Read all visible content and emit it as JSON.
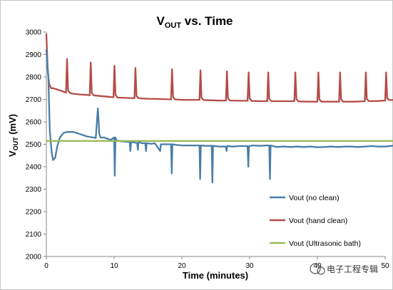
{
  "chart_data": {
    "type": "line",
    "title": {
      "main": "V",
      "sub": "OUT",
      "rest": " vs. Time"
    },
    "xlabel": "Time (minutes)",
    "ylabel": {
      "main": "V",
      "sub": "OUT",
      "rest": " (mV)"
    },
    "xlim": [
      0,
      50
    ],
    "ylim": [
      2000,
      3000
    ],
    "x_ticks": [
      0,
      10,
      20,
      30,
      40,
      50
    ],
    "y_ticks": [
      2000,
      2100,
      2200,
      2300,
      2400,
      2500,
      2600,
      2700,
      2800,
      2900,
      3000
    ],
    "grid": "none",
    "legend_position": "bottom-right",
    "series": [
      {
        "name": "Vout (no clean)",
        "color": "#4a7ea8",
        "x": [
          0,
          0.3,
          0.5,
          0.8,
          1.0,
          1.3,
          1.6,
          2.0,
          2.5,
          3.0,
          3.5,
          4.0,
          4.5,
          5.0,
          5.5,
          6.0,
          6.5,
          7.0,
          7.3,
          7.5,
          7.6,
          7.7,
          7.8,
          8.0,
          8.5,
          9.0,
          9.5,
          10.0,
          10.1,
          10.2,
          10.3,
          10.6,
          11.5,
          12.3,
          12.4,
          12.5,
          13.0,
          13.4,
          13.5,
          13.6,
          14.0,
          14.6,
          14.7,
          14.8,
          15.5,
          16.0,
          16.8,
          16.9,
          17.0,
          17.5,
          18.4,
          18.5,
          18.6,
          19.0,
          20.0,
          21.0,
          22.0,
          22.6,
          22.7,
          22.8,
          23.5,
          24.4,
          24.5,
          24.6,
          25.5,
          26.5,
          26.6,
          26.7,
          27.5,
          28.5,
          29.7,
          29.8,
          29.9,
          30.5,
          31.5,
          32.5,
          32.9,
          33.0,
          33.1,
          34.0,
          35.0,
          36.0,
          37.0,
          38.0,
          39.0,
          40.0,
          41.0,
          42.0,
          43.0,
          44.0,
          45.0,
          46.0,
          47.0,
          48.0,
          49.0,
          50.0,
          51.0,
          51.3
        ],
        "values": [
          2920,
          2800,
          2560,
          2460,
          2430,
          2440,
          2490,
          2530,
          2550,
          2555,
          2555,
          2555,
          2550,
          2545,
          2540,
          2535,
          2532,
          2530,
          2528,
          2620,
          2660,
          2610,
          2548,
          2530,
          2530,
          2525,
          2520,
          2530,
          2360,
          2530,
          2520,
          2515,
          2512,
          2510,
          2470,
          2510,
          2508,
          2505,
          2475,
          2512,
          2505,
          2505,
          2470,
          2505,
          2502,
          2505,
          2470,
          2500,
          2500,
          2500,
          2500,
          2370,
          2500,
          2498,
          2495,
          2495,
          2495,
          2495,
          2345,
          2495,
          2493,
          2493,
          2330,
          2493,
          2490,
          2490,
          2470,
          2492,
          2490,
          2492,
          2492,
          2400,
          2492,
          2495,
          2493,
          2495,
          2495,
          2345,
          2495,
          2488,
          2490,
          2488,
          2490,
          2488,
          2490,
          2487,
          2488,
          2490,
          2488,
          2490,
          2490,
          2488,
          2490,
          2492,
          2490,
          2490,
          2493,
          2495
        ]
      },
      {
        "name": "Vout (hand clean)",
        "color": "#b44c48",
        "x": [
          0,
          0.2,
          0.4,
          0.7,
          1.0,
          1.5,
          2.0,
          2.5,
          2.9,
          3.05,
          3.2,
          3.5,
          4.0,
          5.0,
          6.0,
          6.4,
          6.55,
          6.7,
          7.0,
          8.0,
          9.0,
          9.9,
          10.05,
          10.2,
          10.5,
          11.5,
          12.5,
          13.0,
          13.15,
          13.3,
          13.6,
          15.0,
          16.5,
          18.4,
          18.55,
          18.7,
          19.0,
          20.0,
          21.5,
          22.6,
          22.75,
          22.9,
          23.2,
          24.5,
          25.5,
          26.5,
          26.65,
          26.8,
          27.1,
          28.5,
          29.7,
          29.85,
          30.0,
          30.3,
          31.5,
          32.6,
          32.75,
          32.9,
          33.2,
          35.0,
          36.6,
          36.75,
          36.9,
          37.2,
          38.5,
          40.0,
          40.15,
          40.3,
          40.6,
          42.0,
          43.2,
          43.35,
          43.5,
          43.8,
          45.5,
          47.0,
          47.15,
          47.3,
          47.6,
          49.0,
          50.0,
          50.15,
          50.3,
          50.6,
          51.5
        ],
        "values": [
          2990,
          2830,
          2770,
          2750,
          2750,
          2745,
          2740,
          2735,
          2730,
          2880,
          2740,
          2728,
          2725,
          2722,
          2720,
          2718,
          2865,
          2728,
          2718,
          2715,
          2712,
          2710,
          2850,
          2720,
          2708,
          2707,
          2706,
          2705,
          2840,
          2715,
          2705,
          2703,
          2702,
          2700,
          2835,
          2710,
          2700,
          2698,
          2698,
          2698,
          2830,
          2708,
          2697,
          2696,
          2695,
          2695,
          2825,
          2705,
          2695,
          2694,
          2694,
          2820,
          2704,
          2693,
          2692,
          2692,
          2820,
          2702,
          2692,
          2692,
          2692,
          2820,
          2702,
          2691,
          2690,
          2690,
          2820,
          2700,
          2690,
          2690,
          2690,
          2820,
          2700,
          2690,
          2690,
          2692,
          2820,
          2702,
          2692,
          2693,
          2695,
          2820,
          2705,
          2697,
          2698
        ]
      },
      {
        "name": "Vout (Ultrasonic bath)",
        "color": "#9bbb59",
        "x": [
          0,
          51.5
        ],
        "values": [
          2515,
          2515
        ]
      }
    ]
  },
  "watermark": "电子工程专辑"
}
